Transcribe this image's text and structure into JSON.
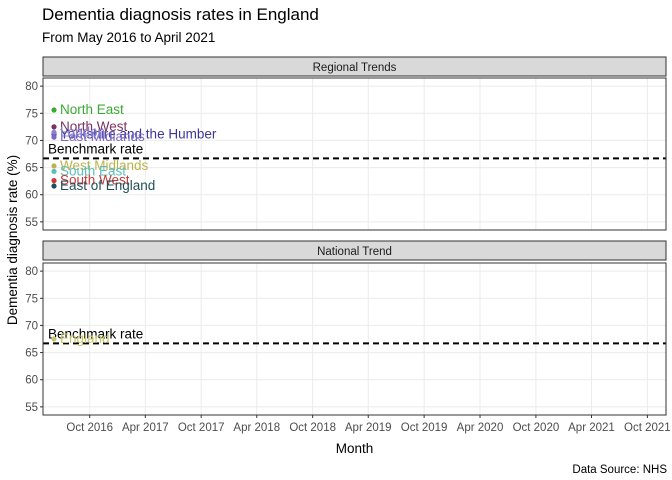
{
  "chart_data": {
    "type": "scatter",
    "title": "Dementia diagnosis rates in England",
    "subtitle": "From May 2016 to April 2021",
    "xlabel": "Month",
    "ylabel": "Dementia diagnosis rate (%)",
    "caption": "Data Source: NHS",
    "xlim": [
      "2016-05-01",
      "2021-12-01"
    ],
    "x_ticks": [
      "2016-10-01",
      "2017-04-01",
      "2017-10-01",
      "2018-04-01",
      "2018-10-01",
      "2019-04-01",
      "2019-10-01",
      "2020-04-01",
      "2020-10-01",
      "2021-04-01",
      "2021-10-01"
    ],
    "x_tick_labels": [
      "Oct 2016",
      "Apr 2017",
      "Oct 2017",
      "Apr 2018",
      "Oct 2018",
      "Apr 2019",
      "Oct 2019",
      "Apr 2020",
      "Oct 2020",
      "Apr 2021",
      "Oct 2021"
    ],
    "ylim": [
      53.5,
      81.5
    ],
    "y_ticks": [
      55,
      60,
      65,
      70,
      75,
      80
    ],
    "grid": true,
    "benchmark": {
      "label": "Benchmark rate",
      "value": 66.7
    },
    "panels": [
      {
        "title": "Regional Trends",
        "series": [
          {
            "name": "North East",
            "color": "#3aaa35",
            "points": [
              {
                "x": "2016-05-01",
                "y": 75.6
              }
            ]
          },
          {
            "name": "North West",
            "color": "#7b3060",
            "points": [
              {
                "x": "2016-05-01",
                "y": 72.5
              }
            ]
          },
          {
            "name": "Yorkshire and the Humber",
            "color": "#3d3598",
            "points": [
              {
                "x": "2016-05-01",
                "y": 71.1
              }
            ]
          },
          {
            "name": "East Midlands",
            "color": "#7a6ac8",
            "points": [
              {
                "x": "2016-05-01",
                "y": 70.6
              }
            ]
          },
          {
            "name": "London",
            "color": "#8a7fd0",
            "points": [
              {
                "x": "2016-05-01",
                "y": 71.5
              }
            ]
          },
          {
            "name": "West Midlands",
            "color": "#bdb24c",
            "points": [
              {
                "x": "2016-05-01",
                "y": 65.3
              }
            ]
          },
          {
            "name": "South East",
            "color": "#5bbfc0",
            "points": [
              {
                "x": "2016-05-01",
                "y": 64.3
              }
            ]
          },
          {
            "name": "South West",
            "color": "#c83a3a",
            "points": [
              {
                "x": "2016-05-01",
                "y": 62.6
              }
            ]
          },
          {
            "name": "East of England",
            "color": "#1f4e5a",
            "points": [
              {
                "x": "2016-05-01",
                "y": 61.6
              }
            ]
          }
        ]
      },
      {
        "title": "National Trend",
        "series": [
          {
            "name": "England",
            "color": "#c8c46a",
            "points": [
              {
                "x": "2016-05-01",
                "y": 67.5
              }
            ]
          }
        ]
      }
    ]
  }
}
